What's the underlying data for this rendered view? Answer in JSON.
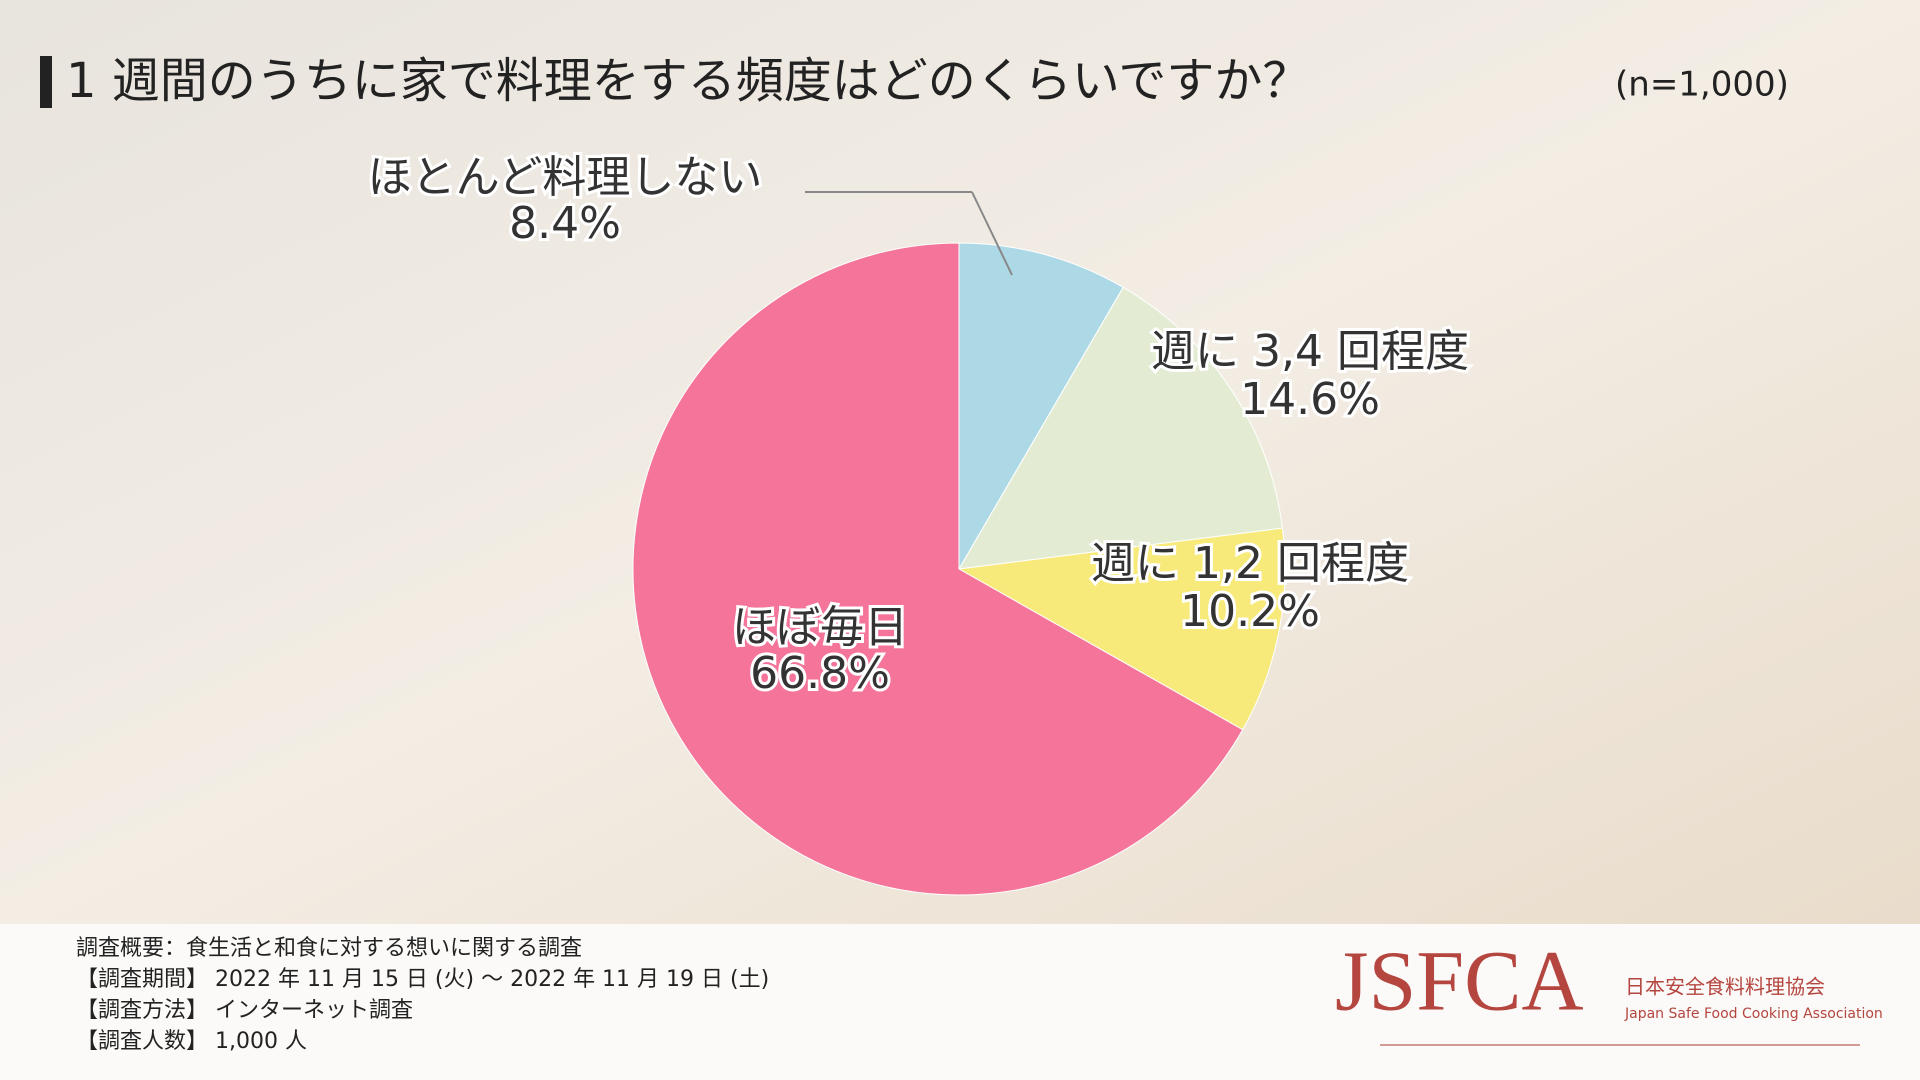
{
  "chart_data": {
    "type": "pie",
    "title": "1 週間のうちに家で料理をする頻度はどのくらいですか？",
    "subtitle": "(n=1,000)",
    "categories": [
      "ほとんど料理しない",
      "週に 3,4 回程度",
      "週に 1,2 回程度",
      "ほぼ毎日"
    ],
    "values": [
      8.4,
      14.6,
      10.2,
      66.8
    ],
    "value_labels": [
      "8.4%",
      "14.6%",
      "10.2%",
      "66.8%"
    ],
    "colors": [
      "#add8e6",
      "#e3ecd3",
      "#f7e97a",
      "#f57499"
    ]
  },
  "footer": {
    "lines": [
      "調査概要：食生活と和食に対する想いに関する調査",
      "【調査期間】 2022 年 11 月 15 日 (火) ～ 2022 年 11 月 19 日 (土)",
      "【調査方法】 インターネット調査",
      "【調査人数】 1,000 人"
    ],
    "logo": "JSFCA",
    "org_name": "日本安全食料料理協会",
    "org_name_en": "Japan Safe Food Cooking Association"
  }
}
